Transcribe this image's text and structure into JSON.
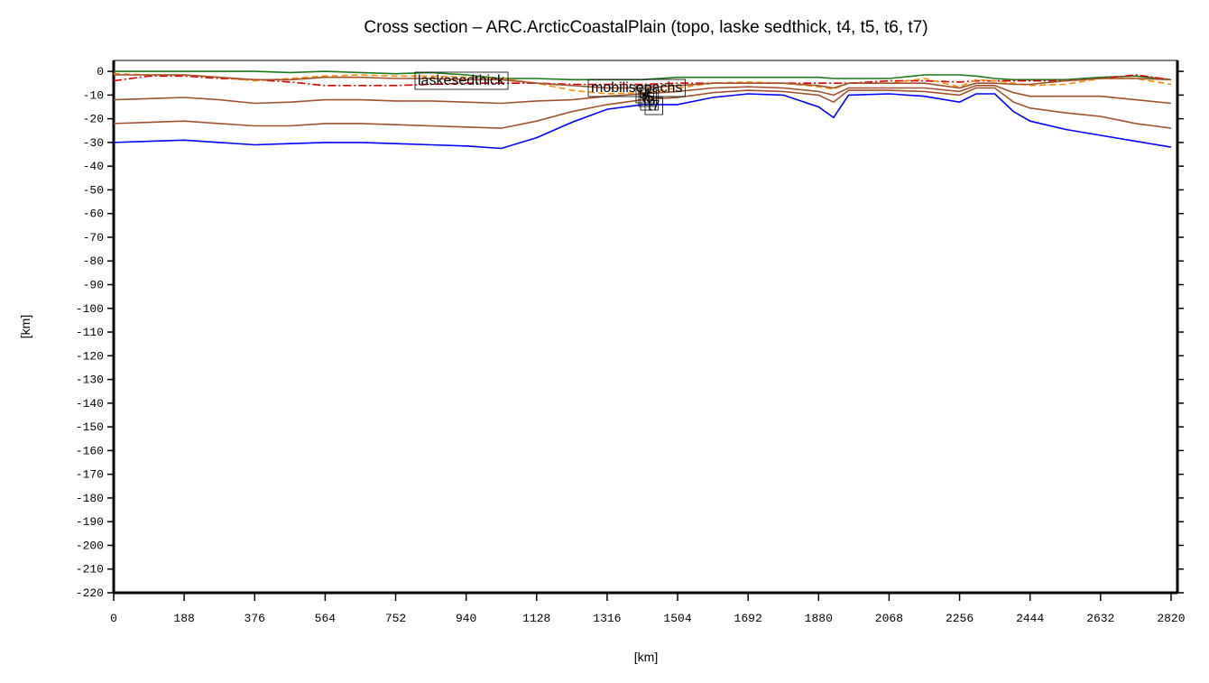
{
  "chart_data": {
    "type": "line",
    "title": "Cross section – ARC.ArcticCoastalPlain (topo, laske sedthick, t4, t5, t6, t7)",
    "xlabel": "[km]",
    "ylabel": "[km]",
    "x": [
      0,
      94,
      188,
      282,
      376,
      470,
      564,
      658,
      752,
      846,
      940,
      1034,
      1128,
      1222,
      1316,
      1410,
      1504,
      1598,
      1692,
      1786,
      1880,
      1920,
      1960,
      2068,
      2162,
      2256,
      2300,
      2350,
      2400,
      2444,
      2538,
      2632,
      2726,
      2820
    ],
    "xlim": [
      0,
      2837
    ],
    "ylim": [
      -220,
      4.6
    ],
    "xticks": [
      0,
      188,
      376,
      564,
      752,
      940,
      1128,
      1316,
      1504,
      1692,
      1880,
      2068,
      2256,
      2444,
      2632,
      2820
    ],
    "yticks": [
      0,
      -10,
      -20,
      -30,
      -40,
      -50,
      -60,
      -70,
      -80,
      -90,
      -100,
      -110,
      -120,
      -130,
      -140,
      -150,
      -160,
      -170,
      -180,
      -190,
      -200,
      -210,
      -220
    ],
    "series": [
      {
        "color": "#1a7a1a",
        "values": [
          0,
          0,
          0,
          0,
          0,
          -0.5,
          0,
          -0.5,
          -1,
          -0.5,
          -1.5,
          -3,
          -3,
          -3.5,
          -3.5,
          -3.5,
          -2.5,
          -2.5,
          -2.5,
          -2.5,
          -2.5,
          -3,
          -3,
          -3,
          -1.5,
          -1.5,
          -2,
          -3,
          -3.5,
          -3.5,
          -3.5,
          -2.5,
          -2,
          -3.5
        ]
      },
      {
        "name": "laskesedthick",
        "color": "#e00000",
        "dash": "dashdot",
        "values": [
          -4,
          -2,
          -2,
          -3,
          -3.5,
          -4.5,
          -6,
          -6,
          -6,
          -5.5,
          -5,
          -5,
          -5,
          -5.5,
          -5.5,
          -5.5,
          -5,
          -5,
          -5,
          -5,
          -5,
          -5,
          -5,
          -4,
          -4,
          -4.5,
          -4,
          -4,
          -4,
          -4,
          -4,
          -3,
          -1.5,
          -3.5
        ]
      },
      {
        "name": "mobilisepachs",
        "color": "#ff8c00",
        "dash": "dashed",
        "values": [
          -1,
          -1.5,
          -1.5,
          -2.5,
          -4,
          -3,
          -2,
          -1.5,
          -2,
          -2,
          -2.5,
          -3,
          -5,
          -8,
          -9.5,
          -9,
          -7,
          -5,
          -4.5,
          -5,
          -6.5,
          -7.5,
          -5,
          -5,
          -3,
          -6.5,
          -3.5,
          -4,
          -5,
          -6,
          -5.5,
          -3,
          -3,
          -5.5
        ]
      },
      {
        "name": "t4",
        "color": "#a0522d",
        "values": [
          -1.5,
          -1.5,
          -1.5,
          -2.5,
          -3.5,
          -3.5,
          -2.5,
          -2.5,
          -3,
          -3,
          -3.5,
          -3.5,
          -5,
          -6,
          -7,
          -7,
          -6,
          -5,
          -5,
          -5,
          -6,
          -7,
          -5,
          -5,
          -5,
          -7,
          -5,
          -5,
          -5.5,
          -5.5,
          -4,
          -3,
          -3,
          -3.5
        ]
      },
      {
        "name": "t5",
        "color": "#a0522d",
        "values": [
          -12,
          -11.5,
          -11,
          -12,
          -13.5,
          -13,
          -12,
          -12,
          -12.5,
          -12.5,
          -13,
          -13.5,
          -12.5,
          -12,
          -10.5,
          -9.5,
          -8.5,
          -7,
          -6.5,
          -7,
          -8.5,
          -10,
          -7,
          -7,
          -7,
          -8.5,
          -6,
          -6,
          -9,
          -10.5,
          -10.5,
          -10.5,
          -12,
          -13.5
        ]
      },
      {
        "name": "t6",
        "color": "#a0522d",
        "values": [
          -22,
          -21.5,
          -21,
          -22,
          -23,
          -23,
          -22,
          -22,
          -22.5,
          -23,
          -23.5,
          -24,
          -21,
          -17,
          -14,
          -12,
          -11,
          -9,
          -8,
          -8.5,
          -10,
          -13,
          -8,
          -8,
          -8.5,
          -10,
          -7,
          -7,
          -13,
          -15.5,
          -17.5,
          -19,
          -22,
          -24
        ]
      },
      {
        "name": "t7",
        "color": "#0000ff",
        "values": [
          -30,
          -29.5,
          -29,
          -30,
          -31,
          -30.5,
          -30,
          -30,
          -30.5,
          -31,
          -31.5,
          -32.5,
          -28,
          -21.5,
          -16,
          -14,
          -14,
          -11,
          -9.5,
          -10,
          -15,
          -19.5,
          -10,
          -9.5,
          -10.5,
          -13,
          -9.5,
          -9.5,
          -17,
          -21,
          -24.5,
          -27,
          -29.5,
          -32
        ]
      }
    ]
  }
}
